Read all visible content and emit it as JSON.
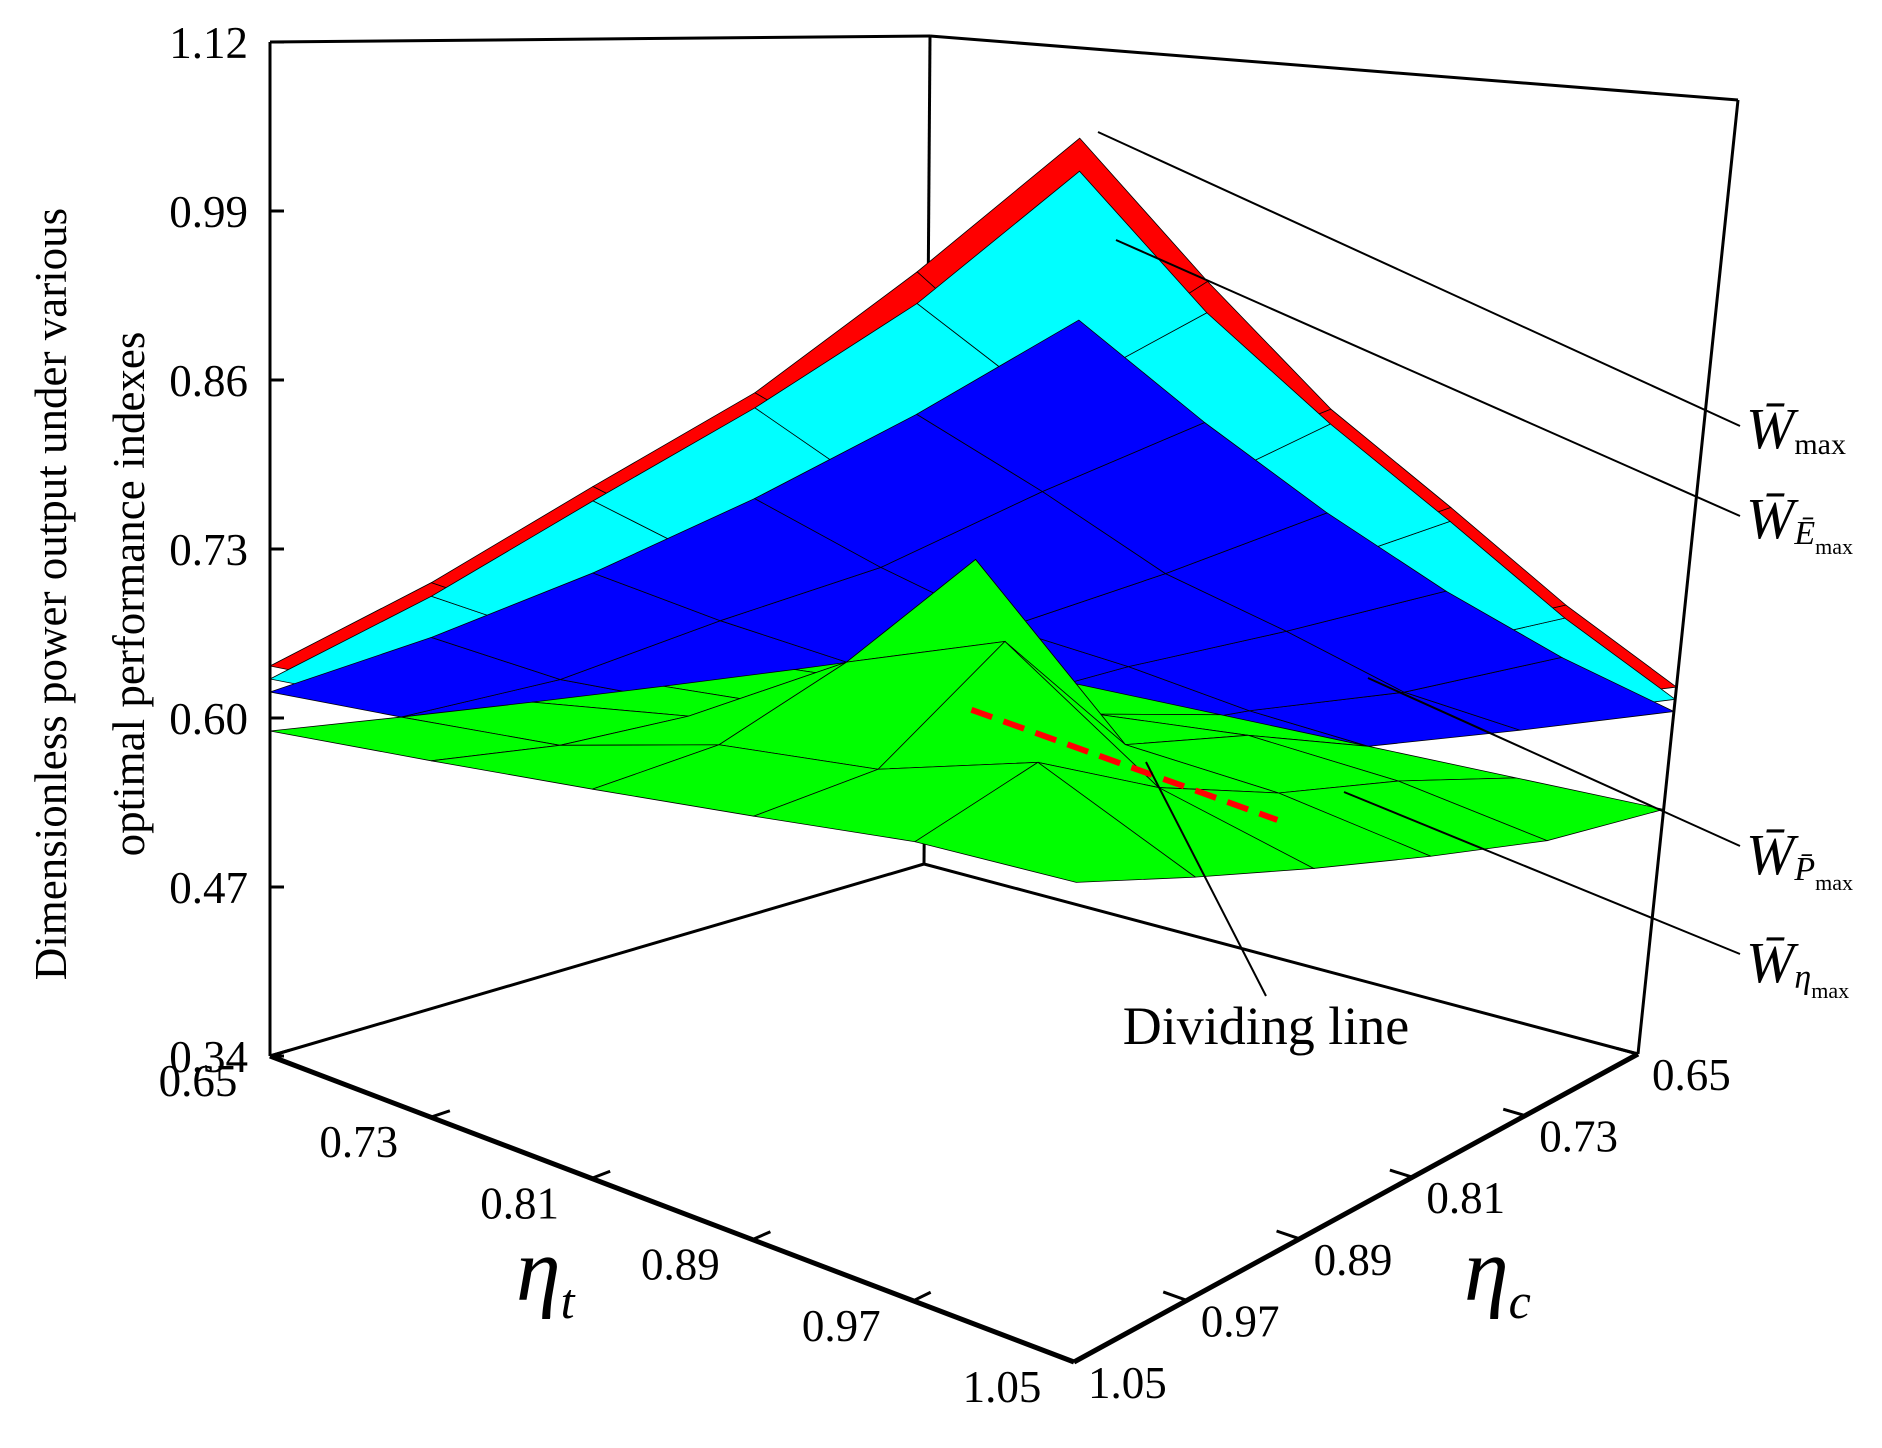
{
  "chart_data": {
    "type": "surface3d",
    "zlabel": [
      "Dimensionless power output under various",
      "optimal performance indexes"
    ],
    "xlabel": {
      "text": "η",
      "sub": "t"
    },
    "ylabel": {
      "text": "η",
      "sub": "c"
    },
    "xlim": [
      0.65,
      1.05
    ],
    "ylim": [
      0.65,
      1.05
    ],
    "zlim": [
      0.34,
      1.12
    ],
    "xticks": [
      0.65,
      0.73,
      0.81,
      0.89,
      0.97,
      1.05
    ],
    "yticks": [
      0.65,
      0.73,
      0.81,
      0.89,
      0.97,
      1.05
    ],
    "zticks": [
      0.34,
      0.47,
      {
        "value": 0.6,
        "label": "0.60"
      },
      0.73,
      0.86,
      0.99,
      1.12
    ],
    "x": [
      0.65,
      0.73,
      0.81,
      0.89,
      0.97,
      1.05
    ],
    "y": [
      0.65,
      0.73,
      0.81,
      0.89,
      0.97,
      1.05
    ],
    "series": [
      {
        "name": "W̄",
        "subscript": "max",
        "color": "#ff0000",
        "values": [
          [
            0.45,
            0.49,
            0.53,
            0.56,
            0.6,
            0.64
          ],
          [
            0.49,
            0.54,
            0.58,
            0.63,
            0.68,
            0.73
          ],
          [
            0.53,
            0.58,
            0.64,
            0.7,
            0.76,
            0.82
          ],
          [
            0.56,
            0.63,
            0.7,
            0.77,
            0.84,
            0.9
          ],
          [
            0.6,
            0.68,
            0.76,
            0.84,
            0.91,
            0.99
          ],
          [
            0.64,
            0.73,
            0.82,
            0.9,
            0.99,
            1.08
          ]
        ]
      },
      {
        "name": "W̄",
        "subscript": "Ē",
        "subsubscript": "max",
        "color": "#00ffff",
        "values": [
          [
            0.44,
            0.48,
            0.52,
            0.55,
            0.59,
            0.63
          ],
          [
            0.48,
            0.53,
            0.57,
            0.62,
            0.67,
            0.72
          ],
          [
            0.52,
            0.57,
            0.63,
            0.69,
            0.75,
            0.81
          ],
          [
            0.55,
            0.62,
            0.69,
            0.76,
            0.82,
            0.89
          ],
          [
            0.59,
            0.67,
            0.75,
            0.82,
            0.9,
            0.97
          ],
          [
            0.63,
            0.72,
            0.81,
            0.89,
            0.97,
            1.06
          ]
        ]
      },
      {
        "name": "W̄",
        "subscript": "P̄",
        "subsubscript": "max",
        "color": "#0000ff",
        "values": [
          [
            0.42,
            0.46,
            0.5,
            0.54,
            0.58,
            0.62
          ],
          [
            0.46,
            0.51,
            0.55,
            0.6,
            0.64,
            0.69
          ],
          [
            0.5,
            0.55,
            0.6,
            0.66,
            0.71,
            0.76
          ],
          [
            0.54,
            0.6,
            0.66,
            0.71,
            0.77,
            0.83
          ],
          [
            0.58,
            0.64,
            0.71,
            0.77,
            0.84,
            0.9
          ],
          [
            0.62,
            0.69,
            0.76,
            0.83,
            0.9,
            0.97
          ]
        ]
      },
      {
        "name": "W̄",
        "subscript": "η",
        "subsubscript": "max",
        "color": "#00ff00",
        "values": [
          [
            0.54,
            0.55,
            0.56,
            0.57,
            0.58,
            0.59
          ],
          [
            0.54,
            0.56,
            0.57,
            0.59,
            0.59,
            0.6
          ],
          [
            0.54,
            0.57,
            0.72,
            0.66,
            0.62,
            0.61
          ],
          [
            0.54,
            0.58,
            0.6,
            0.7,
            0.63,
            0.62
          ],
          [
            0.54,
            0.57,
            0.59,
            0.62,
            0.66,
            0.63
          ],
          [
            0.54,
            0.55,
            0.57,
            0.59,
            0.61,
            0.63
          ]
        ]
      }
    ],
    "dividing_line": {
      "label": "Dividing line",
      "color": "#ff0000",
      "x": [
        0.81,
        0.97
      ],
      "y": [
        0.81,
        0.81
      ],
      "z": [
        0.6,
        0.57
      ]
    }
  }
}
